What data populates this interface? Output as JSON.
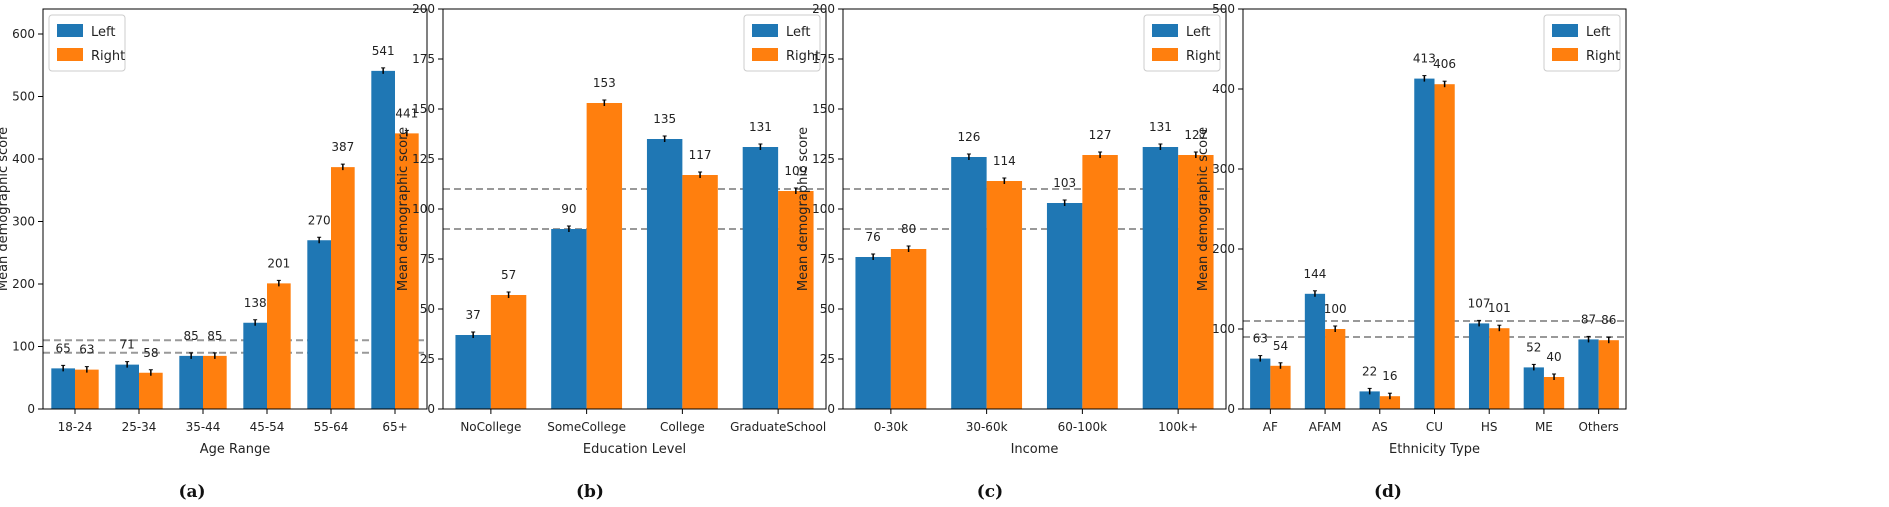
{
  "colors": {
    "left": "#1f77b4",
    "right": "#ff7f0e",
    "reference_line": "#999999",
    "errorbar": "#000000"
  },
  "chart_data": [
    {
      "type": "bar",
      "caption": "(a)",
      "xlabel": "Age Range",
      "ylabel": "Mean demographic score",
      "ylim": [
        0,
        640
      ],
      "yticks": [
        0,
        100,
        200,
        300,
        400,
        500,
        600
      ],
      "categories": [
        "18-24",
        "25-34",
        "35-44",
        "45-54",
        "55-64",
        "65+"
      ],
      "series": [
        {
          "name": "Left",
          "values": [
            65,
            71,
            85,
            138,
            270,
            541
          ]
        },
        {
          "name": "Right",
          "values": [
            63,
            58,
            85,
            201,
            387,
            441
          ]
        }
      ],
      "reference_lines": [
        90,
        110
      ],
      "legend": "top-left",
      "grid": false
    },
    {
      "type": "bar",
      "caption": "(b)",
      "xlabel": "Education Level",
      "ylabel": "Mean demographic score",
      "ylim": [
        0,
        200
      ],
      "yticks": [
        0,
        25,
        50,
        75,
        100,
        125,
        150,
        175,
        200
      ],
      "categories": [
        "NoCollege",
        "SomeCollege",
        "College",
        "GraduateSchool"
      ],
      "series": [
        {
          "name": "Left",
          "values": [
            37,
            90,
            135,
            131
          ]
        },
        {
          "name": "Right",
          "values": [
            57,
            153,
            117,
            109
          ]
        }
      ],
      "reference_lines": [
        90,
        110
      ],
      "legend": "top-right",
      "grid": false
    },
    {
      "type": "bar",
      "caption": "(c)",
      "xlabel": "Income",
      "ylabel": "Mean demographic score",
      "ylim": [
        0,
        200
      ],
      "yticks": [
        0,
        25,
        50,
        75,
        100,
        125,
        150,
        175,
        200
      ],
      "categories": [
        "0-30k",
        "30-60k",
        "60-100k",
        "100k+"
      ],
      "series": [
        {
          "name": "Left",
          "values": [
            76,
            126,
            103,
            131
          ]
        },
        {
          "name": "Right",
          "values": [
            80,
            114,
            127,
            127
          ]
        }
      ],
      "reference_lines": [
        90,
        110
      ],
      "legend": "top-right",
      "grid": false
    },
    {
      "type": "bar",
      "caption": "(d)",
      "xlabel": "Ethnicity Type",
      "ylabel": "Mean demographic score",
      "ylim": [
        0,
        500
      ],
      "yticks": [
        0,
        100,
        200,
        300,
        400,
        500
      ],
      "categories": [
        "AF",
        "AFAM",
        "AS",
        "CU",
        "HS",
        "ME",
        "Others"
      ],
      "series": [
        {
          "name": "Left",
          "values": [
            63,
            144,
            22,
            413,
            107,
            52,
            87
          ]
        },
        {
          "name": "Right",
          "values": [
            54,
            100,
            16,
            406,
            101,
            40,
            86
          ]
        }
      ],
      "reference_lines": [
        90,
        110
      ],
      "legend": "top-right",
      "grid": false
    }
  ]
}
